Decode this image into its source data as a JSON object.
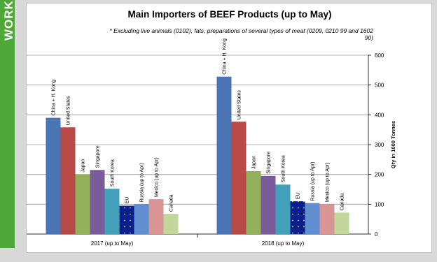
{
  "sidebar": {
    "tab_text": "WORK"
  },
  "chart_data": {
    "type": "bar",
    "title": "Main Importers of BEEF Products (up to May)",
    "subtitle_line1": "* Excluding live animals (0102), fats, preparations of several types of meat (0209, 0210 99 and 1602",
    "subtitle_line2": "90)",
    "ylabel": "Qty in 1000 Tonnes",
    "ylim": [
      0,
      600
    ],
    "yticks": [
      0,
      100,
      200,
      300,
      400,
      500,
      600
    ],
    "y_axis_side": "right",
    "grid": true,
    "categories": [
      "2017 (up to May)",
      "2018 (up to May)"
    ],
    "series": [
      {
        "name": "China + H. Kong",
        "color": "#4a74b4",
        "values": [
          390,
          528
        ]
      },
      {
        "name": "United States",
        "color": "#b84a48",
        "values": [
          358,
          377
        ]
      },
      {
        "name": "Japan",
        "color": "#93b05a",
        "values": [
          200,
          211
        ]
      },
      {
        "name": "Singapore",
        "color": "#7a5c9a",
        "values": [
          215,
          195
        ]
      },
      {
        "name": "South Korea",
        "color": "#43a0ba",
        "values": [
          152,
          166
        ]
      },
      {
        "name": "EU",
        "color": "#0a1f8f",
        "values": [
          95,
          110
        ],
        "pattern": "eu-stars"
      },
      {
        "name": "Russia (up to Apr)",
        "color": "#5f8fd0",
        "values": [
          100,
          104
        ]
      },
      {
        "name": "Mexico (up to Apr)",
        "color": "#d99594",
        "values": [
          117,
          100
        ]
      },
      {
        "name": "Canada",
        "color": "#c3d69b",
        "values": [
          68,
          72
        ]
      }
    ]
  }
}
